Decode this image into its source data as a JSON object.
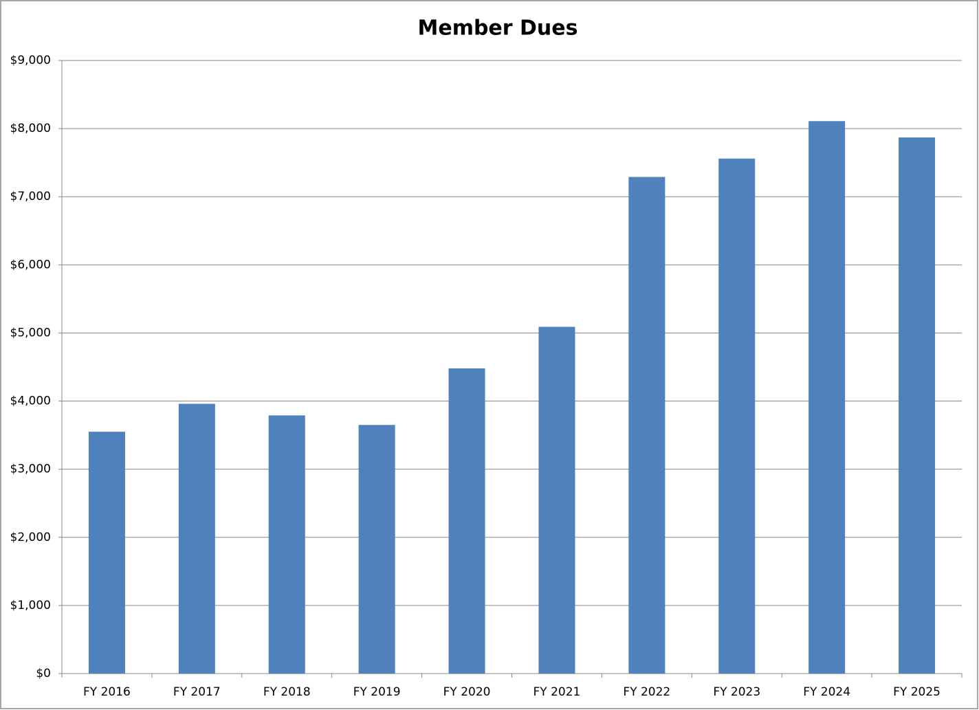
{
  "chart_data": {
    "type": "bar",
    "title": "Member Dues",
    "categories": [
      "FY 2016",
      "FY 2017",
      "FY 2018",
      "FY 2019",
      "FY 2020",
      "FY 2021",
      "FY 2022",
      "FY 2023",
      "FY 2024",
      "FY 2025"
    ],
    "values": [
      3550,
      3960,
      3790,
      3650,
      4480,
      5090,
      7290,
      7560,
      8110,
      7870
    ],
    "color": "#4f81bd",
    "ylim": [
      0,
      9000
    ],
    "yticks": [
      {
        "value": 0,
        "label": "$0"
      },
      {
        "value": 1000,
        "label": "$1,000"
      },
      {
        "value": 2000,
        "label": "$2,000"
      },
      {
        "value": 3000,
        "label": "$3,000"
      },
      {
        "value": 4000,
        "label": "$4,000"
      },
      {
        "value": 5000,
        "label": "$5,000"
      },
      {
        "value": 6000,
        "label": "$6,000"
      },
      {
        "value": 7000,
        "label": "$7,000"
      },
      {
        "value": 8000,
        "label": "$8,000"
      },
      {
        "value": 9000,
        "label": "$9,000"
      }
    ],
    "grid": true
  }
}
